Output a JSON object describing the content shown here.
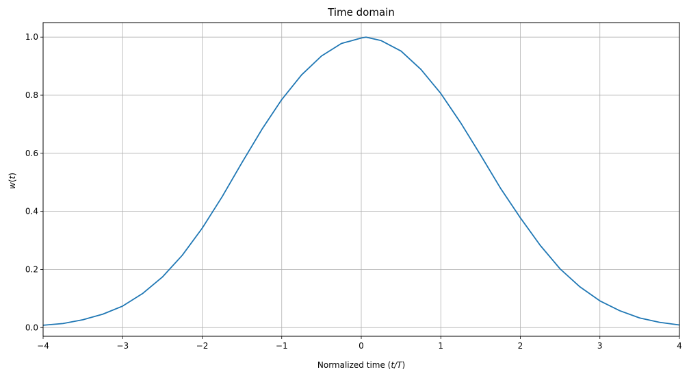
{
  "chart_data": {
    "type": "line",
    "title": "Time domain",
    "xlabel": {
      "prefix": "Normalized time (",
      "var": "t/T",
      "suffix": ")"
    },
    "ylabel": {
      "func": "w",
      "arg": "t"
    },
    "xlim": [
      -4,
      4
    ],
    "ylim": [
      -0.03,
      1.05
    ],
    "xticks": [
      -4,
      -3,
      -2,
      -1,
      0,
      1,
      2,
      3,
      4
    ],
    "xtick_labels": [
      "−4",
      "−3",
      "−2",
      "−1",
      "0",
      "1",
      "2",
      "3",
      "4"
    ],
    "yticks": [
      0.0,
      0.2,
      0.4,
      0.6,
      0.8,
      1.0
    ],
    "ytick_labels": [
      "0.0",
      "0.2",
      "0.4",
      "0.6",
      "0.8",
      "1.0"
    ],
    "grid": true,
    "series": [
      {
        "color": "#1f77b4",
        "x": [
          -4.0,
          -3.75,
          -3.5,
          -3.25,
          -3.0,
          -2.75,
          -2.5,
          -2.25,
          -2.0,
          -1.75,
          -1.5,
          -1.25,
          -1.0,
          -0.75,
          -0.5,
          -0.25,
          0.0,
          0.06,
          0.25,
          0.5,
          0.75,
          1.0,
          1.25,
          1.5,
          1.75,
          2.0,
          2.25,
          2.5,
          2.75,
          3.0,
          3.25,
          3.5,
          3.75,
          4.0
        ],
        "y": [
          0.008,
          0.014,
          0.027,
          0.046,
          0.074,
          0.117,
          0.174,
          0.249,
          0.342,
          0.45,
          0.568,
          0.682,
          0.785,
          0.87,
          0.935,
          0.978,
          0.997,
          1.0,
          0.988,
          0.952,
          0.889,
          0.806,
          0.705,
          0.594,
          0.48,
          0.378,
          0.283,
          0.202,
          0.14,
          0.092,
          0.058,
          0.033,
          0.018,
          0.009
        ]
      }
    ]
  }
}
